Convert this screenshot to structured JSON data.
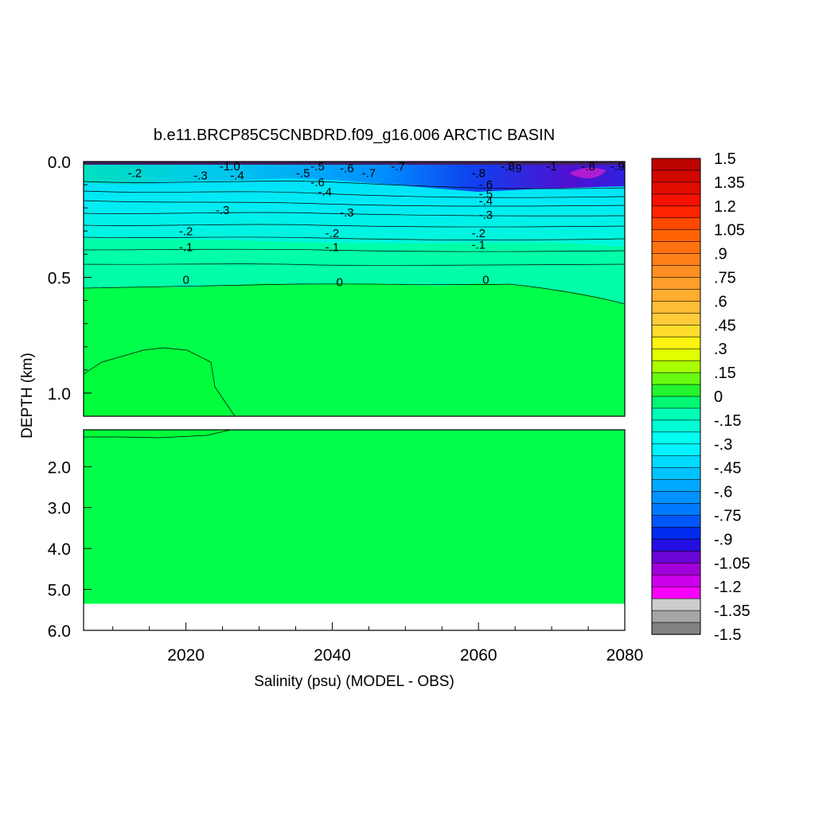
{
  "chart_data": {
    "type": "heatmap",
    "title": "b.e11.BRCP85C5CNBDRD.f09_g16.006 ARCTIC BASIN",
    "xlabel": "Salinity (psu) (MODEL - OBS)",
    "ylabel": "DEPTH (km)",
    "xlim": [
      2006,
      2080
    ],
    "x_ticks": [
      "2020",
      "2040",
      "2060",
      "2080"
    ],
    "upper_panel": {
      "ylim": [
        0.0,
        1.1
      ],
      "y_ticks": [
        "0.0",
        "0.5",
        "1.0"
      ]
    },
    "lower_panel": {
      "ylim": [
        1.1,
        6.0
      ],
      "y_ticks": [
        "2.0",
        "3.0",
        "4.0",
        "5.0",
        "6.0"
      ],
      "data_bottom_depth": 5.35
    },
    "colorbar": {
      "min": -1.5,
      "max": 1.5,
      "step": 0.075,
      "tick_labels": [
        "1.5",
        "1.35",
        "1.2",
        "1.05",
        ".9",
        ".75",
        ".6",
        ".45",
        ".3",
        ".15",
        "0",
        "-.15",
        "-.3",
        "-.45",
        "-.6",
        "-.75",
        "-.9",
        "-1.05",
        "-1.2",
        "-1.35",
        "-1.5"
      ]
    },
    "contour_labels": [
      {
        "text": "-.2",
        "year": 2013,
        "depth": 0.05
      },
      {
        "text": "-.3",
        "year": 2022,
        "depth": 0.06
      },
      {
        "text": "-1.0",
        "year": 2026,
        "depth": 0.02
      },
      {
        "text": "-.4",
        "year": 2027,
        "depth": 0.06
      },
      {
        "text": "-.3",
        "year": 2025,
        "depth": 0.21
      },
      {
        "text": "-.5",
        "year": 2036,
        "depth": 0.05
      },
      {
        "text": "-.5",
        "year": 2038,
        "depth": 0.02
      },
      {
        "text": "-.6",
        "year": 2038,
        "depth": 0.09
      },
      {
        "text": "-.4",
        "year": 2039,
        "depth": 0.13
      },
      {
        "text": "-.6",
        "year": 2042,
        "depth": 0.03
      },
      {
        "text": "-.7",
        "year": 2045,
        "depth": 0.05
      },
      {
        "text": "-.7",
        "year": 2049,
        "depth": 0.02
      },
      {
        "text": "-.3",
        "year": 2042,
        "depth": 0.22
      },
      {
        "text": "-.8",
        "year": 2060,
        "depth": 0.05
      },
      {
        "text": "-.6",
        "year": 2061,
        "depth": 0.1
      },
      {
        "text": "-.5",
        "year": 2061,
        "depth": 0.14
      },
      {
        "text": "-.4",
        "year": 2061,
        "depth": 0.17
      },
      {
        "text": "-.3",
        "year": 2061,
        "depth": 0.23
      },
      {
        "text": "-.8",
        "year": 2064,
        "depth": 0.02
      },
      {
        "text": "-.9",
        "year": 2065,
        "depth": 0.03
      },
      {
        "text": "-1",
        "year": 2070,
        "depth": 0.02
      },
      {
        "text": "-.8",
        "year": 2075,
        "depth": 0.02
      },
      {
        "text": "-.9",
        "year": 2079,
        "depth": 0.02
      },
      {
        "text": "-.2",
        "year": 2020,
        "depth": 0.3
      },
      {
        "text": "-.1",
        "year": 2020,
        "depth": 0.37
      },
      {
        "text": "-.2",
        "year": 2040,
        "depth": 0.31
      },
      {
        "text": "-.1",
        "year": 2040,
        "depth": 0.37
      },
      {
        "text": "-.2",
        "year": 2060,
        "depth": 0.31
      },
      {
        "text": "-.1",
        "year": 2060,
        "depth": 0.36
      },
      {
        "text": "0",
        "year": 2020,
        "depth": 0.51
      },
      {
        "text": "0",
        "year": 2041,
        "depth": 0.52
      },
      {
        "text": "0",
        "year": 2061,
        "depth": 0.51
      }
    ]
  }
}
